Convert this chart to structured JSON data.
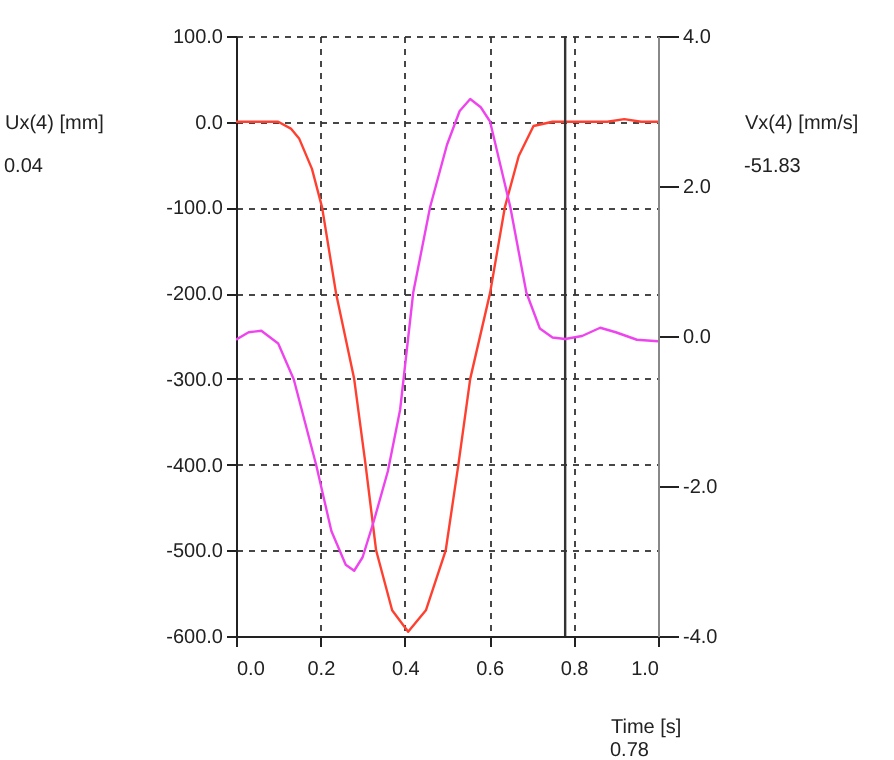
{
  "chart_data": {
    "type": "line",
    "xlabel": "Time [s]",
    "ylabel": "Ux(4) [mm]",
    "y2label": "Vx(4) [mm/s]",
    "annotations": [
      "0.04",
      "-51.83",
      "0.78"
    ],
    "xlim": [
      0,
      1
    ],
    "xticks": [
      {
        "value": 0,
        "label": "0.0"
      },
      {
        "value": 0.2,
        "label": "0.2"
      },
      {
        "value": 0.4,
        "label": "0.4"
      },
      {
        "value": 0.6,
        "label": "0.6"
      },
      {
        "value": 0.8,
        "label": "0.8"
      },
      {
        "value": 1,
        "label": "1.0"
      }
    ],
    "ylim": [
      -600,
      100
    ],
    "yticks": [
      {
        "value": -600,
        "label": "-600.0"
      },
      {
        "value": -500,
        "label": "-500.0"
      },
      {
        "value": -400,
        "label": "-400.0"
      },
      {
        "value": -300,
        "label": "-300.0"
      },
      {
        "value": -200,
        "label": "-200.0"
      },
      {
        "value": -100,
        "label": "-100.0"
      },
      {
        "value": 0,
        "label": "0.0"
      },
      {
        "value": 100,
        "label": "100.0"
      }
    ],
    "y2lim": [
      -4,
      4
    ],
    "y2ticks": [
      {
        "value": -4,
        "label": "-4.0"
      },
      {
        "value": -2,
        "label": "-2.0"
      },
      {
        "value": 0,
        "label": "0.0"
      },
      {
        "value": 2,
        "label": "2.0"
      },
      {
        "value": 4,
        "label": "4.0"
      }
    ],
    "grid": true,
    "ref_lines": [
      {
        "axis": "x",
        "value": 0.78,
        "color": "#333333"
      }
    ],
    "series": [
      {
        "color": "#ff4030",
        "x": [
          0,
          0.05,
          0.1,
          0.13,
          0.15,
          0.18,
          0.204,
          0.237,
          0.28,
          0.307,
          0.332,
          0.37,
          0.408,
          0.45,
          0.497,
          0.527,
          0.555,
          0.602,
          0.637,
          0.67,
          0.705,
          0.75,
          0.8,
          0.88,
          0.92,
          0.96,
          1.0
        ],
        "values": [
          0,
          0,
          0,
          -8,
          -20,
          -55,
          -100,
          -200,
          -300,
          -400,
          -500,
          -570,
          -595,
          -570,
          -500,
          -400,
          -300,
          -200,
          -100,
          -40,
          -5,
          0,
          0,
          0,
          3,
          0,
          0
        ]
      },
      {
        "color": "#ee44ee",
        "axis": "y2",
        "x": [
          0,
          0.03,
          0.06,
          0.1,
          0.137,
          0.19,
          0.226,
          0.26,
          0.28,
          0.3,
          0.327,
          0.36,
          0.389,
          0.42,
          0.46,
          0.5,
          0.53,
          0.555,
          0.58,
          0.602,
          0.65,
          0.688,
          0.72,
          0.75,
          0.78,
          0.82,
          0.863,
          0.9,
          0.95,
          1.0
        ],
        "values": [
          -0.05,
          0.05,
          0.07,
          -0.1,
          -0.58,
          -1.72,
          -2.6,
          -3.05,
          -3.13,
          -2.95,
          -2.46,
          -1.8,
          -0.98,
          0.58,
          1.72,
          2.55,
          3.0,
          3.16,
          3.05,
          2.86,
          1.72,
          0.58,
          0.1,
          -0.02,
          -0.04,
          0.0,
          0.11,
          0.05,
          -0.05,
          -0.07
        ]
      }
    ]
  }
}
